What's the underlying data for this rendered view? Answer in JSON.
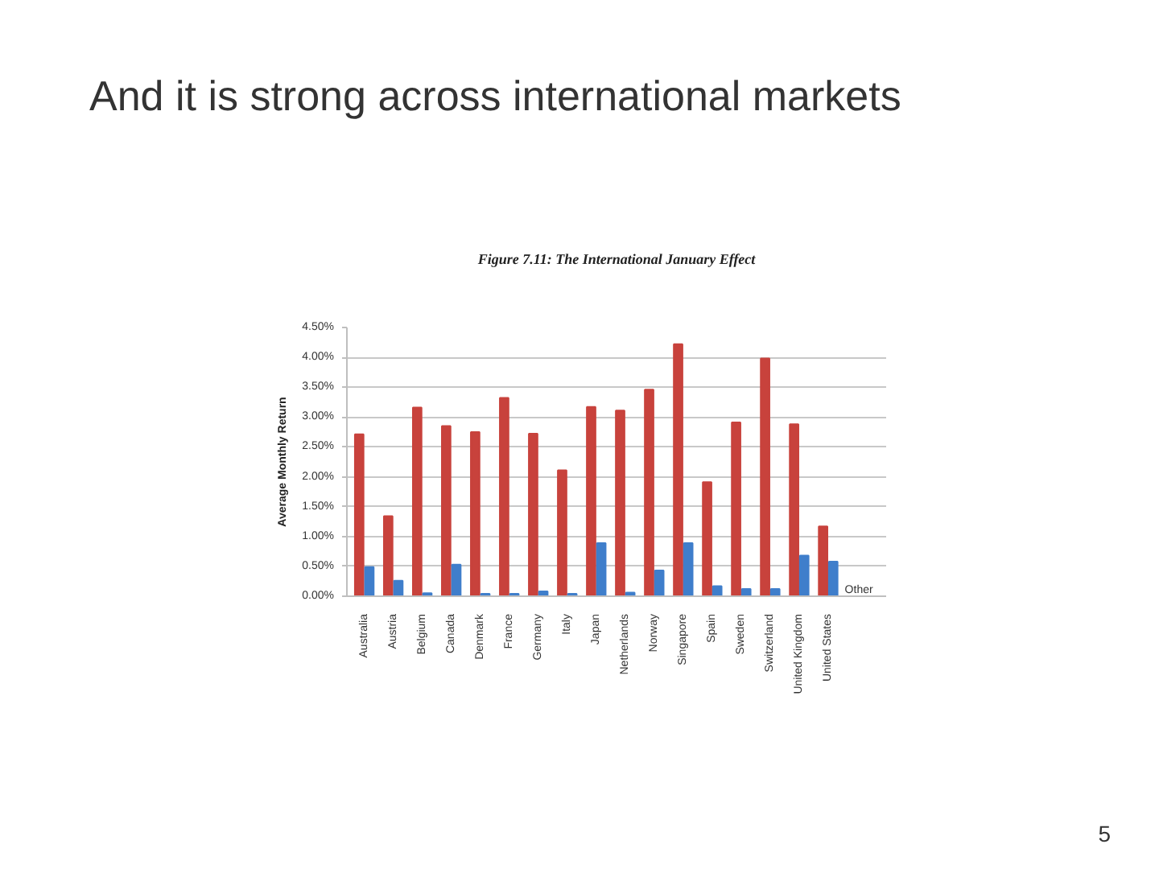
{
  "chart_data": {
    "type": "bar",
    "title": "And it is strong across international markets",
    "subtitle": "Figure 7.11: The International January Effect",
    "ylabel": "Average Monthly Return",
    "categories": [
      "Australia",
      "Austria",
      "Belgium",
      "Canada",
      "Denmark",
      "France",
      "Germany",
      "Italy",
      "Japan",
      "Netherlands",
      "Norway",
      "Singapore",
      "Spain",
      "Sweden",
      "Switzerland",
      "United Kingdom",
      "United States"
    ],
    "series": [
      {
        "color": "#c8423c",
        "values": [
          2.71,
          1.34,
          3.16,
          2.85,
          2.75,
          3.32,
          2.72,
          2.11,
          3.17,
          3.11,
          3.46,
          4.22,
          1.91,
          2.91,
          3.98,
          2.88,
          1.17
        ]
      },
      {
        "name": "Other",
        "color": "#3f7ecb",
        "values": [
          0.49,
          0.26,
          0.05,
          0.53,
          0.04,
          0.04,
          0.08,
          0.04,
          0.89,
          0.06,
          0.43,
          0.89,
          0.17,
          0.12,
          0.12,
          0.68,
          0.58
        ]
      }
    ],
    "ylim": [
      0,
      4.5
    ],
    "yticks": [
      {
        "value": 0,
        "label": "0.00%"
      },
      {
        "value": 0.5,
        "label": "0.50%"
      },
      {
        "value": 1,
        "label": "1.00%"
      },
      {
        "value": 1.5,
        "label": "1.50%"
      },
      {
        "value": 2,
        "label": "2.00%"
      },
      {
        "value": 2.5,
        "label": "2.50%"
      },
      {
        "value": 3,
        "label": "3.00%"
      },
      {
        "value": 3.5,
        "label": "3.50%"
      },
      {
        "value": 4,
        "label": "4.00%"
      },
      {
        "value": 4.5,
        "label": "4.50%"
      }
    ],
    "grid": "y",
    "annotations": [
      "5"
    ]
  }
}
